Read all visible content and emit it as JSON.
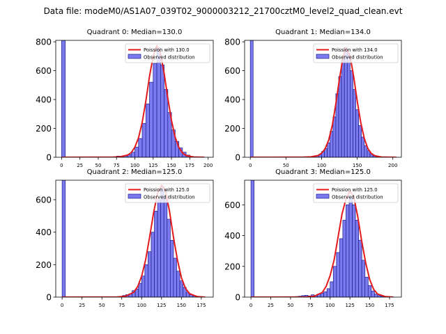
{
  "suptitle": "Data file: modeM0/AS1A07_039T02_9000003212_21700cztM0_level2_quad_clean.evt",
  "colors": {
    "hist_fill": "#7b7bef",
    "hist_edge": "#1c1c8c",
    "poisson": "#e31a1c",
    "axis": "#000000"
  },
  "chart_data": [
    {
      "type": "bar",
      "title": "Quadrant 0: Median=130.0",
      "median": 130.0,
      "xlim": [
        -8,
        207
      ],
      "ylim": [
        0,
        810
      ],
      "xticks": [
        0,
        25,
        50,
        75,
        100,
        125,
        150,
        175,
        200
      ],
      "yticks": [
        0,
        200,
        400,
        600,
        800
      ],
      "legend": {
        "position": "top-right",
        "entries": [
          "Poission with 130.0",
          "Observed distribution"
        ]
      },
      "bin_width": 5,
      "bins": [
        [
          0,
          810
        ],
        [
          70,
          2
        ],
        [
          75,
          8
        ],
        [
          80,
          5
        ],
        [
          85,
          10
        ],
        [
          90,
          18
        ],
        [
          95,
          35
        ],
        [
          100,
          70
        ],
        [
          105,
          130
        ],
        [
          110,
          235
        ],
        [
          115,
          370
        ],
        [
          120,
          520
        ],
        [
          125,
          650
        ],
        [
          130,
          760
        ],
        [
          135,
          640
        ],
        [
          140,
          470
        ],
        [
          145,
          310
        ],
        [
          150,
          190
        ],
        [
          155,
          110
        ],
        [
          160,
          65
        ],
        [
          165,
          35
        ],
        [
          170,
          15
        ],
        [
          175,
          6
        ],
        [
          180,
          3
        ]
      ],
      "poisson_x": [
        0,
        70,
        80,
        90,
        95,
        100,
        105,
        110,
        115,
        120,
        125,
        130,
        135,
        140,
        145,
        150,
        155,
        160,
        165,
        170,
        180,
        195
      ],
      "poisson_y": [
        0,
        1,
        4,
        15,
        32,
        70,
        135,
        240,
        390,
        560,
        700,
        775,
        720,
        580,
        410,
        255,
        140,
        70,
        30,
        12,
        2,
        0
      ]
    },
    {
      "type": "bar",
      "title": "Quadrant 1: Median=134.0",
      "median": 134.0,
      "xlim": [
        -8,
        212
      ],
      "ylim": [
        0,
        810
      ],
      "xticks": [
        0,
        50,
        100,
        150,
        200
      ],
      "yticks": [
        0,
        200,
        400,
        600,
        800
      ],
      "legend": {
        "position": "top-right",
        "entries": [
          "Poission with 134.0",
          "Observed distribution"
        ]
      },
      "bin_width": 4,
      "bins": [
        [
          0,
          810
        ],
        [
          84,
          5
        ],
        [
          88,
          8
        ],
        [
          92,
          12
        ],
        [
          96,
          20
        ],
        [
          100,
          40
        ],
        [
          104,
          60
        ],
        [
          108,
          100
        ],
        [
          112,
          180
        ],
        [
          116,
          280
        ],
        [
          120,
          440
        ],
        [
          124,
          560
        ],
        [
          128,
          680
        ],
        [
          132,
          760
        ],
        [
          136,
          720
        ],
        [
          140,
          600
        ],
        [
          144,
          470
        ],
        [
          148,
          330
        ],
        [
          152,
          220
        ],
        [
          156,
          140
        ],
        [
          160,
          80
        ],
        [
          164,
          45
        ],
        [
          168,
          25
        ],
        [
          172,
          10
        ],
        [
          176,
          5
        ],
        [
          180,
          2
        ]
      ],
      "poisson_x": [
        0,
        75,
        85,
        95,
        100,
        105,
        110,
        115,
        120,
        125,
        130,
        134,
        140,
        145,
        150,
        155,
        160,
        165,
        170,
        175,
        185,
        205
      ],
      "poisson_y": [
        0,
        1,
        3,
        12,
        28,
        60,
        120,
        220,
        370,
        540,
        690,
        760,
        700,
        560,
        390,
        240,
        130,
        60,
        25,
        10,
        1,
        0
      ]
    },
    {
      "type": "bar",
      "title": "Quadrant 2: Median=125.0",
      "median": 125.0,
      "xlim": [
        -8,
        190
      ],
      "ylim": [
        0,
        720
      ],
      "xticks": [
        0,
        25,
        50,
        75,
        100,
        125,
        150,
        175
      ],
      "yticks": [
        0,
        200,
        400,
        600
      ],
      "legend": {
        "position": "top-right",
        "entries": [
          "Poission with 125.0",
          "Observed distribution"
        ]
      },
      "bin_width": 4,
      "bins": [
        [
          0,
          720
        ],
        [
          76,
          10
        ],
        [
          80,
          15
        ],
        [
          84,
          20
        ],
        [
          88,
          40
        ],
        [
          92,
          50
        ],
        [
          96,
          85
        ],
        [
          100,
          130
        ],
        [
          104,
          200
        ],
        [
          108,
          280
        ],
        [
          112,
          400
        ],
        [
          116,
          530
        ],
        [
          120,
          600
        ],
        [
          124,
          680
        ],
        [
          128,
          620
        ],
        [
          132,
          480
        ],
        [
          136,
          350
        ],
        [
          140,
          240
        ],
        [
          144,
          160
        ],
        [
          148,
          100
        ],
        [
          152,
          60
        ],
        [
          156,
          30
        ],
        [
          160,
          15
        ],
        [
          164,
          8
        ],
        [
          168,
          4
        ],
        [
          172,
          2
        ]
      ],
      "poisson_x": [
        0,
        70,
        80,
        90,
        95,
        100,
        105,
        110,
        115,
        120,
        125,
        130,
        135,
        140,
        145,
        150,
        155,
        160,
        170,
        180
      ],
      "poisson_y": [
        0,
        1,
        6,
        30,
        65,
        130,
        230,
        370,
        520,
        640,
        690,
        650,
        530,
        370,
        230,
        120,
        55,
        22,
        3,
        0
      ]
    },
    {
      "type": "bar",
      "title": "Quadrant 3: Median=125.0",
      "median": 125.0,
      "xlim": [
        -8,
        190
      ],
      "ylim": [
        0,
        760
      ],
      "xticks": [
        0,
        25,
        50,
        75,
        100,
        125,
        150,
        175
      ],
      "yticks": [
        0,
        200,
        400,
        600
      ],
      "legend": {
        "position": "top-right",
        "entries": [
          "Poission with 125.0",
          "Observed distribution"
        ]
      },
      "bin_width": 4,
      "bins": [
        [
          0,
          760
        ],
        [
          56,
          4
        ],
        [
          60,
          6
        ],
        [
          64,
          10
        ],
        [
          68,
          12
        ],
        [
          72,
          8
        ],
        [
          76,
          15
        ],
        [
          80,
          10
        ],
        [
          84,
          20
        ],
        [
          88,
          25
        ],
        [
          92,
          35
        ],
        [
          96,
          55
        ],
        [
          100,
          100
        ],
        [
          104,
          200
        ],
        [
          108,
          290
        ],
        [
          112,
          380
        ],
        [
          116,
          500
        ],
        [
          120,
          600
        ],
        [
          124,
          650
        ],
        [
          128,
          600
        ],
        [
          132,
          500
        ],
        [
          136,
          370
        ],
        [
          140,
          240
        ],
        [
          144,
          130
        ],
        [
          148,
          75
        ],
        [
          152,
          40
        ],
        [
          156,
          20
        ],
        [
          160,
          10
        ],
        [
          164,
          5
        ],
        [
          168,
          2
        ]
      ],
      "poisson_x": [
        0,
        70,
        80,
        90,
        95,
        100,
        105,
        110,
        115,
        120,
        125,
        130,
        135,
        140,
        145,
        150,
        155,
        160,
        170,
        180
      ],
      "poisson_y": [
        0,
        1,
        6,
        30,
        70,
        140,
        240,
        390,
        540,
        640,
        690,
        650,
        520,
        360,
        220,
        115,
        50,
        20,
        3,
        0
      ]
    }
  ]
}
